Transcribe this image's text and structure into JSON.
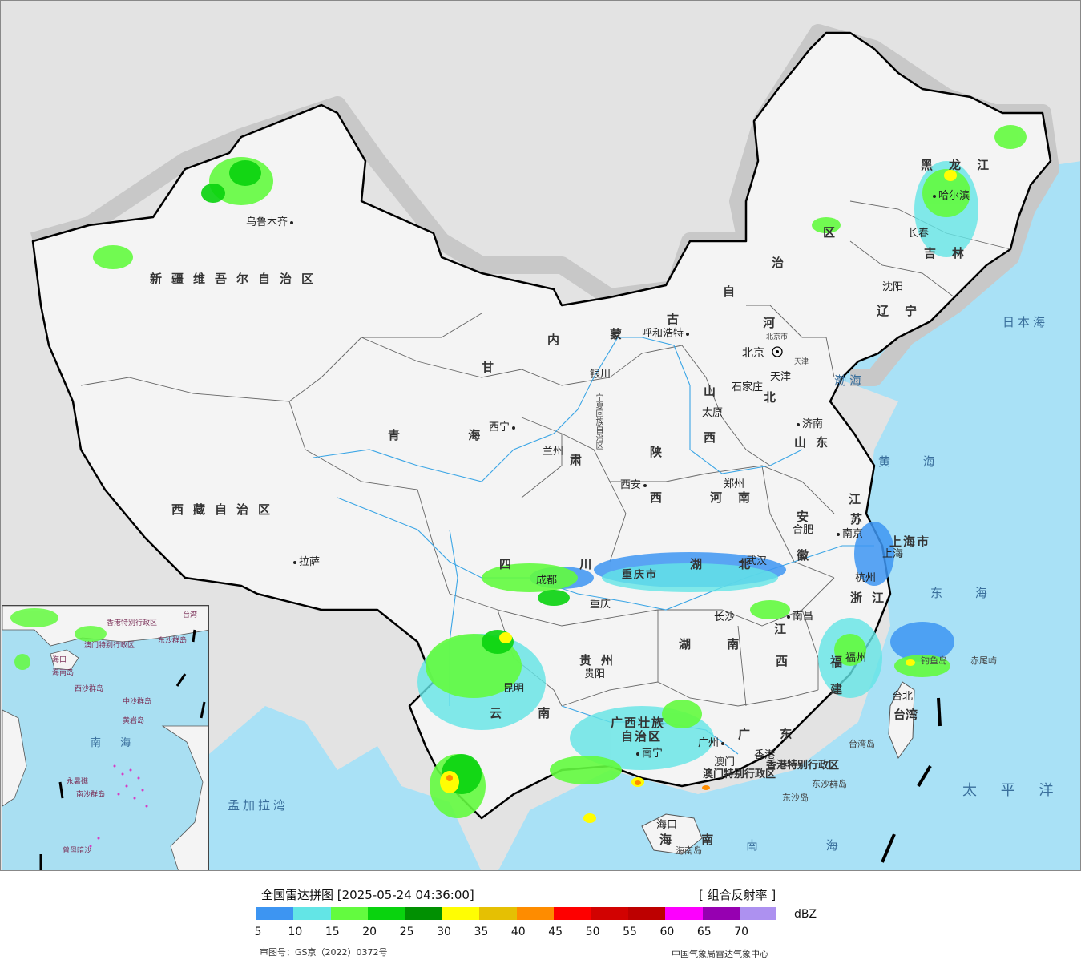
{
  "map": {
    "cities": [
      {
        "id": "urumqi",
        "name": "乌鲁木齐"
      },
      {
        "id": "lhasa",
        "name": "拉萨"
      },
      {
        "id": "xining",
        "name": "西宁"
      },
      {
        "id": "lanzhou",
        "name": "兰州"
      },
      {
        "id": "yinchuan",
        "name": "银川"
      },
      {
        "id": "hohhot",
        "name": "呼和浩特"
      },
      {
        "id": "beijing",
        "name": "北京"
      },
      {
        "id": "tianjin",
        "name": "天津"
      },
      {
        "id": "shijiazhuang",
        "name": "石家庄"
      },
      {
        "id": "taiyuan",
        "name": "太原"
      },
      {
        "id": "jinan",
        "name": "济南"
      },
      {
        "id": "zhengzhou",
        "name": "郑州"
      },
      {
        "id": "xian",
        "name": "西安"
      },
      {
        "id": "chengdu",
        "name": "成都"
      },
      {
        "id": "chongqing",
        "name": "重庆"
      },
      {
        "id": "guiyang",
        "name": "贵阳"
      },
      {
        "id": "kunming",
        "name": "昆明"
      },
      {
        "id": "wuhan",
        "name": "武汉"
      },
      {
        "id": "changsha",
        "name": "长沙"
      },
      {
        "id": "nanchang",
        "name": "南昌"
      },
      {
        "id": "hefei",
        "name": "合肥"
      },
      {
        "id": "nanjing",
        "name": "南京"
      },
      {
        "id": "shanghai",
        "name": "上海"
      },
      {
        "id": "hangzhou",
        "name": "杭州"
      },
      {
        "id": "fuzhou",
        "name": "福州"
      },
      {
        "id": "taibei",
        "name": "台北"
      },
      {
        "id": "guangzhou",
        "name": "广州"
      },
      {
        "id": "nanning",
        "name": "南宁"
      },
      {
        "id": "haikou",
        "name": "海口"
      },
      {
        "id": "xianggang",
        "name": "香港"
      },
      {
        "id": "aomen",
        "name": "澳门"
      },
      {
        "id": "shenyang",
        "name": "沈阳"
      },
      {
        "id": "changchun",
        "name": "长春"
      },
      {
        "id": "harbin",
        "name": "哈尔滨"
      }
    ],
    "provinces": [
      {
        "id": "xinjiang",
        "name": "新疆维吾尔自治区"
      },
      {
        "id": "xizang",
        "name": "西藏自治区"
      },
      {
        "id": "qinghai",
        "name": "青 海"
      },
      {
        "id": "gansu",
        "name": "甘"
      },
      {
        "id": "gansu2",
        "name": "肃"
      },
      {
        "id": "neimenggu1",
        "name": "内"
      },
      {
        "id": "neimenggu2",
        "name": "蒙"
      },
      {
        "id": "neimenggu3",
        "name": "古"
      },
      {
        "id": "neimenggu4",
        "name": "自"
      },
      {
        "id": "neimenggu5",
        "name": "治"
      },
      {
        "id": "neimenggu6",
        "name": "区"
      },
      {
        "id": "heilongjiang",
        "name": "黑龙江"
      },
      {
        "id": "jilin",
        "name": "吉林"
      },
      {
        "id": "liaoning",
        "name": "辽宁"
      },
      {
        "id": "hebei1",
        "name": "河"
      },
      {
        "id": "hebei2",
        "name": "北"
      },
      {
        "id": "shanxi1",
        "name": "山"
      },
      {
        "id": "shanxi2",
        "name": "西"
      },
      {
        "id": "shandong",
        "name": "山东"
      },
      {
        "id": "henan",
        "name": "河南"
      },
      {
        "id": "shaanxi1",
        "name": "陕"
      },
      {
        "id": "shaanxi2",
        "name": "西"
      },
      {
        "id": "sichuan",
        "name": "四 川"
      },
      {
        "id": "hubei",
        "name": "湖 北"
      },
      {
        "id": "hunan",
        "name": "湖 南"
      },
      {
        "id": "jiangxi1",
        "name": "江"
      },
      {
        "id": "jiangxi2",
        "name": "西"
      },
      {
        "id": "anhui1",
        "name": "安"
      },
      {
        "id": "anhui2",
        "name": "徽"
      },
      {
        "id": "jiangsu1",
        "name": "江"
      },
      {
        "id": "jiangsu2",
        "name": "苏"
      },
      {
        "id": "zhejiang",
        "name": "浙江"
      },
      {
        "id": "fujian1",
        "name": "福"
      },
      {
        "id": "fujian2",
        "name": "建"
      },
      {
        "id": "guizhou",
        "name": "贵州"
      },
      {
        "id": "yunnan",
        "name": "云 南"
      },
      {
        "id": "guangxi",
        "name": "广西壮族"
      },
      {
        "id": "guangxi2",
        "name": "自治区"
      },
      {
        "id": "guangdong",
        "name": "广 东"
      },
      {
        "id": "hainan",
        "name": "海 南"
      },
      {
        "id": "taiwan",
        "name": "台湾"
      },
      {
        "id": "beijingshi",
        "name": "北京市"
      },
      {
        "id": "tianjinshi",
        "name": "天津"
      },
      {
        "id": "shanghaishi",
        "name": "上海市"
      },
      {
        "id": "chongqingshi",
        "name": "重庆市"
      },
      {
        "id": "ningxia",
        "name": "宁夏回族自治区"
      },
      {
        "id": "xianggangteb",
        "name": "香港特别行政区"
      },
      {
        "id": "aomenteb",
        "name": "澳门特别行政区"
      }
    ],
    "seas": [
      {
        "id": "bohai",
        "name": "渤海"
      },
      {
        "id": "huanghai",
        "name": "黄 海"
      },
      {
        "id": "donghai",
        "name": "东 海"
      },
      {
        "id": "nanhai",
        "name": "南 海"
      },
      {
        "id": "taipingyang",
        "name": "太 平 洋"
      },
      {
        "id": "ribenhai",
        "name": "日本海"
      },
      {
        "id": "mengjialawan",
        "name": "孟加拉湾"
      }
    ],
    "islands": [
      {
        "id": "diaoyudao",
        "name": "钓鱼岛"
      },
      {
        "id": "chiweiyu",
        "name": "赤尾屿"
      },
      {
        "id": "taiwandao",
        "name": "台湾岛"
      },
      {
        "id": "dongshaqundao",
        "name": "东沙群岛"
      },
      {
        "id": "dongshadao",
        "name": "东沙岛"
      },
      {
        "id": "hainandao",
        "name": "海南岛"
      }
    ],
    "inset": {
      "labels": [
        "香港特别行政区",
        "澳门特别行政区",
        "东沙群岛",
        "海口",
        "海南岛",
        "西沙群岛",
        "中沙群岛",
        "黄岩岛",
        "南 海",
        "永暑礁",
        "南沙群岛",
        "曾母暗沙",
        "台湾"
      ]
    }
  },
  "legend": {
    "title": "全国雷达拼图 [2025-05-24 04:36:00]",
    "product": "[ 组合反射率 ]",
    "unit": "dBZ",
    "colors": [
      "#3d95f2",
      "#63e5e6",
      "#63fb3f",
      "#09d30e",
      "#019002",
      "#fffd03",
      "#e5c003",
      "#fe8c00",
      "#fe0000",
      "#d20201",
      "#bd0000",
      "#fd00fe",
      "#9600b1",
      "#ad91f0"
    ],
    "ticks": [
      "5",
      "10",
      "15",
      "20",
      "25",
      "30",
      "35",
      "40",
      "45",
      "50",
      "55",
      "60",
      "65",
      "70"
    ],
    "review_number": "审图号：GS京（2022）0372号",
    "agency": "中国气象局雷达气象中心"
  }
}
